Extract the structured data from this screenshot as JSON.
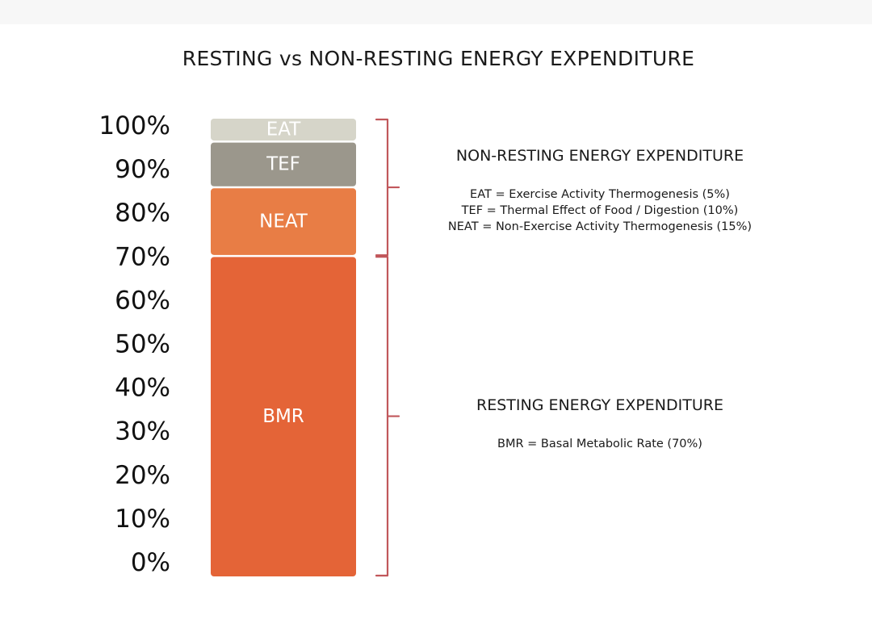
{
  "chart_data": {
    "type": "bar",
    "title": "RESTING vs NON-RESTING ENERGY EXPENDITURE",
    "ylim": [
      0,
      100
    ],
    "y_ticks": [
      "0%",
      "10%",
      "20%",
      "30%",
      "40%",
      "50%",
      "60%",
      "70%",
      "80%",
      "90%",
      "100%"
    ],
    "stack": [
      {
        "name": "BMR",
        "value": 70,
        "color": "#e46437"
      },
      {
        "name": "NEAT",
        "value": 15,
        "color": "#e87d45"
      },
      {
        "name": "TEF",
        "value": 10,
        "color": "#9b978c"
      },
      {
        "name": "EAT",
        "value": 5,
        "color": "#d6d5c9"
      }
    ],
    "groups": [
      {
        "title": "NON-RESTING ENERGY EXPENDITURE",
        "range": [
          70,
          100
        ],
        "descriptions": [
          "EAT = Exercise Activity Thermogenesis (5%)",
          "TEF = Thermal Effect of Food / Digestion (10%)",
          "NEAT = Non-Exercise Activity Thermogenesis (15%)"
        ]
      },
      {
        "title": "RESTING ENERGY EXPENDITURE",
        "range": [
          0,
          70
        ],
        "descriptions": [
          "BMR = Basal Metabolic Rate (70%)"
        ]
      }
    ],
    "bracket_color": "#c1575b"
  }
}
